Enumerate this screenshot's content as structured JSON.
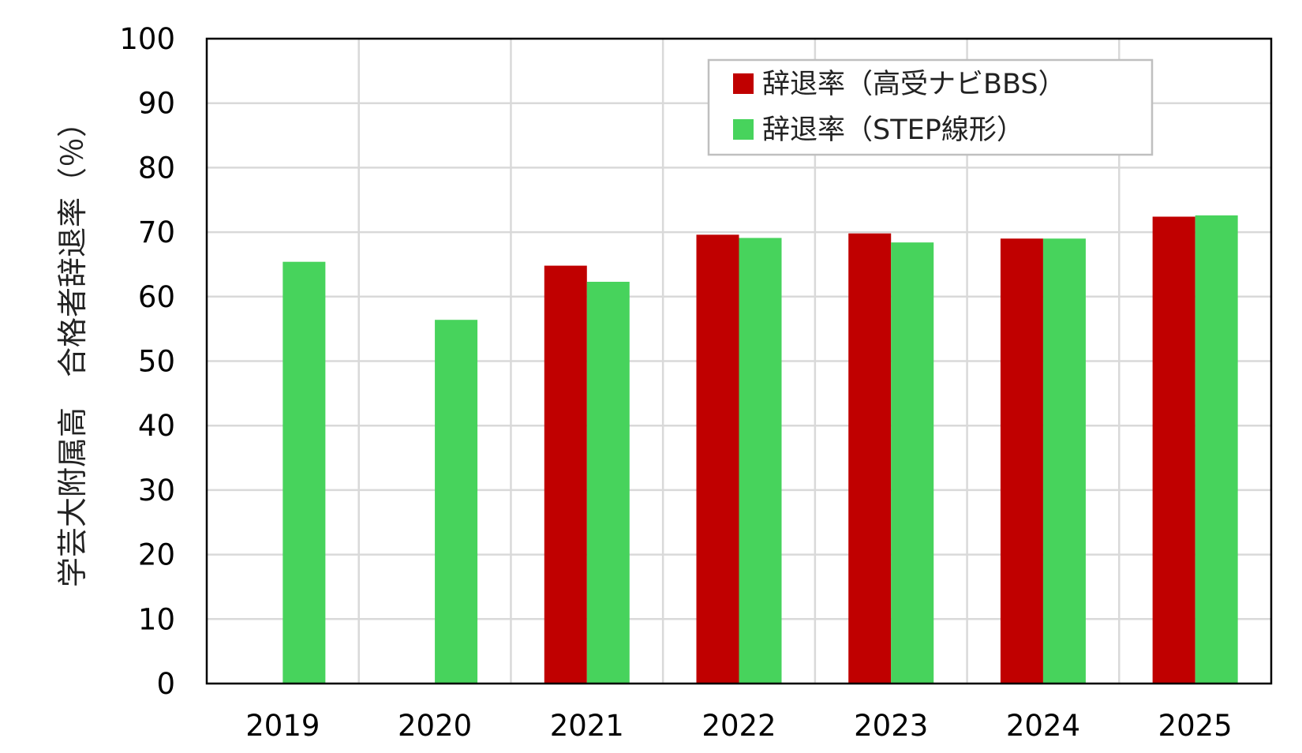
{
  "chart_data": {
    "type": "bar",
    "title": "",
    "xlabel": "",
    "ylabel": "学芸大附属高　合格者辞退率（％）",
    "ylim": [
      0,
      100
    ],
    "yticks": [
      "0",
      "10",
      "20",
      "30",
      "40",
      "50",
      "60",
      "70",
      "80",
      "90",
      "100"
    ],
    "categories": [
      "2019",
      "2020",
      "2021",
      "2022",
      "2023",
      "2024",
      "2025"
    ],
    "grid": true,
    "legend_position": "top-right",
    "series": [
      {
        "name": "辞退率（高受ナビBBS）",
        "color": "#c00000",
        "values": [
          null,
          null,
          64.8,
          69.6,
          69.8,
          69.0,
          72.4
        ]
      },
      {
        "name": "辞退率（STEP線形）",
        "color": "#47d35c",
        "values": [
          65.4,
          56.4,
          62.3,
          69.1,
          68.4,
          69.0,
          72.6
        ]
      }
    ]
  }
}
